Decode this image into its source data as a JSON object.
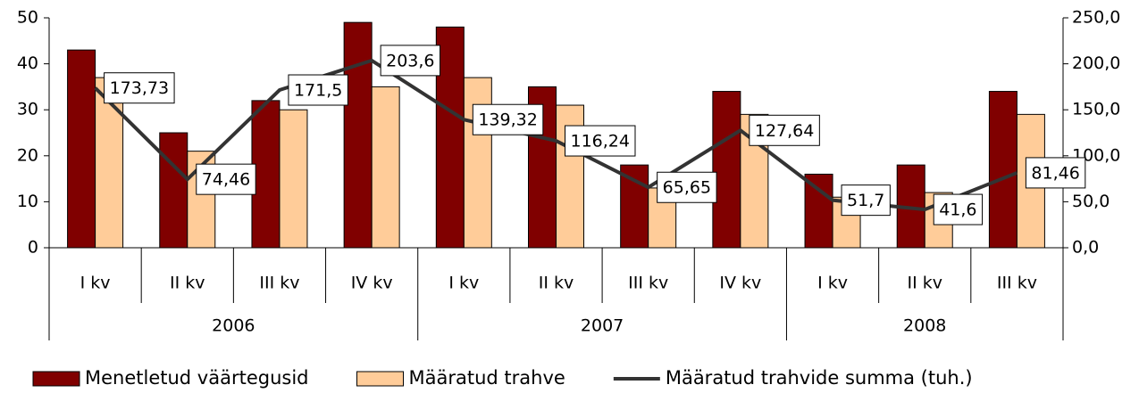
{
  "chart_data": {
    "type": "bar-line",
    "groups": [
      {
        "label": "2006",
        "categories": [
          "I kv",
          "II kv",
          "III kv",
          "IV kv"
        ]
      },
      {
        "label": "2007",
        "categories": [
          "I kv",
          "II kv",
          "III kv",
          "IV kv"
        ]
      },
      {
        "label": "2008",
        "categories": [
          "I kv",
          "II kv",
          "III kv"
        ]
      }
    ],
    "series": [
      {
        "name": "Menetletud väärtegusid",
        "type": "bar",
        "color": "#800000",
        "values": [
          43,
          25,
          32,
          49,
          48,
          35,
          18,
          34,
          16,
          18,
          34
        ]
      },
      {
        "name": "Määratud trahve",
        "type": "bar",
        "color": "#ffcc99",
        "values": [
          37,
          21,
          30,
          35,
          37,
          31,
          13,
          29,
          11,
          12,
          29
        ]
      },
      {
        "name": "Määratud trahvide summa (tuh.)",
        "type": "line",
        "axis": "y2",
        "color": "#333333",
        "values": [
          173.73,
          74.46,
          171.5,
          203.6,
          139.32,
          116.24,
          65.65,
          127.64,
          51.7,
          41.6,
          81.46
        ],
        "value_labels": [
          "173,73",
          "74,46",
          "171,5",
          "203,6",
          "139,32",
          "116,24",
          "65,65",
          "127,64",
          "51,7",
          "41,6",
          "81,46"
        ]
      }
    ],
    "ylim": [
      0,
      50
    ],
    "yticks": [
      0,
      10,
      20,
      30,
      40,
      50
    ],
    "y2lim": [
      0,
      250
    ],
    "y2ticks": [
      {
        "value": 0,
        "label": "0,0"
      },
      {
        "value": 50,
        "label": "50,0"
      },
      {
        "value": 100,
        "label": "100,0"
      },
      {
        "value": 150,
        "label": "150,0"
      },
      {
        "value": 200,
        "label": "200,0"
      },
      {
        "value": 250,
        "label": "250,0"
      }
    ],
    "legend": "bottom"
  }
}
